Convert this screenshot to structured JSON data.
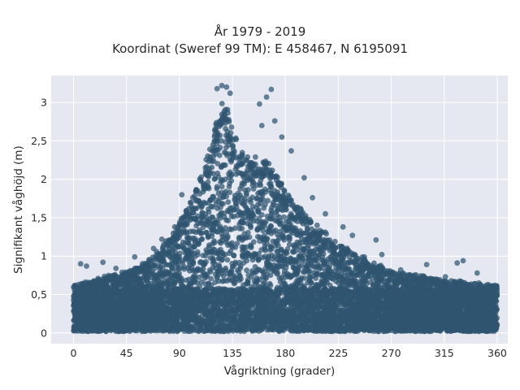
{
  "chart_data": {
    "type": "scatter",
    "title": "År 1979 - 2019",
    "subtitle": "Koordinat (Sweref 99 TM): E 458467, N 6195091",
    "xlabel": "Vågriktning (grader)",
    "ylabel": "Signifikant våghöjd (m)",
    "xlim": [
      -19,
      369
    ],
    "ylim": [
      -0.14,
      3.35
    ],
    "xticks": [
      0,
      45,
      90,
      135,
      180,
      225,
      270,
      315,
      360
    ],
    "xtick_labels": [
      "0",
      "45",
      "90",
      "135",
      "180",
      "225",
      "270",
      "315",
      "360"
    ],
    "yticks": [
      0,
      0.5,
      1,
      1.5,
      2,
      2.5,
      3
    ],
    "ytick_labels": [
      "0",
      "0,5",
      "1",
      "1,5",
      "2",
      "2,5",
      "3"
    ],
    "grid": true,
    "colors": {
      "marker": "#2f5570",
      "plot_bg": "#e5e8f0",
      "grid": "#ffffff"
    },
    "envelope": {
      "x": [
        0,
        10,
        20,
        30,
        45,
        60,
        75,
        90,
        100,
        110,
        120,
        127,
        135,
        145,
        155,
        165,
        180,
        200,
        225,
        250,
        270,
        300,
        330,
        360
      ],
      "upper": [
        0.62,
        0.66,
        0.7,
        0.74,
        0.8,
        0.9,
        1.1,
        1.42,
        1.75,
        2.1,
        2.6,
        3.1,
        2.65,
        2.3,
        2.25,
        2.25,
        1.85,
        1.5,
        1.15,
        0.95,
        0.8,
        0.72,
        0.66,
        0.62
      ]
    },
    "outliers": [
      {
        "x": 122,
        "y": 3.18
      },
      {
        "x": 126,
        "y": 3.22
      },
      {
        "x": 130,
        "y": 3.2
      },
      {
        "x": 133,
        "y": 3.12
      },
      {
        "x": 158,
        "y": 2.98
      },
      {
        "x": 164,
        "y": 3.07
      },
      {
        "x": 168,
        "y": 3.17
      },
      {
        "x": 171,
        "y": 2.76
      },
      {
        "x": 160,
        "y": 2.7
      },
      {
        "x": 177,
        "y": 2.55
      },
      {
        "x": 185,
        "y": 2.37
      },
      {
        "x": 196,
        "y": 2.02
      },
      {
        "x": 203,
        "y": 1.76
      },
      {
        "x": 214,
        "y": 1.55
      },
      {
        "x": 229,
        "y": 1.38
      },
      {
        "x": 237,
        "y": 1.27
      },
      {
        "x": 257,
        "y": 1.21
      },
      {
        "x": 262,
        "y": 1.02
      },
      {
        "x": 278,
        "y": 0.82
      },
      {
        "x": 300,
        "y": 0.89
      },
      {
        "x": 316,
        "y": 0.73
      },
      {
        "x": 326,
        "y": 0.91
      },
      {
        "x": 331,
        "y": 0.94
      },
      {
        "x": 343,
        "y": 0.78
      },
      {
        "x": 6,
        "y": 0.9
      },
      {
        "x": 11,
        "y": 0.87
      },
      {
        "x": 25,
        "y": 0.92
      },
      {
        "x": 36,
        "y": 0.84
      },
      {
        "x": 52,
        "y": 0.99
      },
      {
        "x": 68,
        "y": 1.1
      },
      {
        "x": 75,
        "y": 1.22
      },
      {
        "x": 86,
        "y": 1.38
      },
      {
        "x": 92,
        "y": 1.8
      },
      {
        "x": 98,
        "y": 1.62
      },
      {
        "x": 104,
        "y": 1.85
      },
      {
        "x": 112,
        "y": 2.15
      }
    ]
  }
}
